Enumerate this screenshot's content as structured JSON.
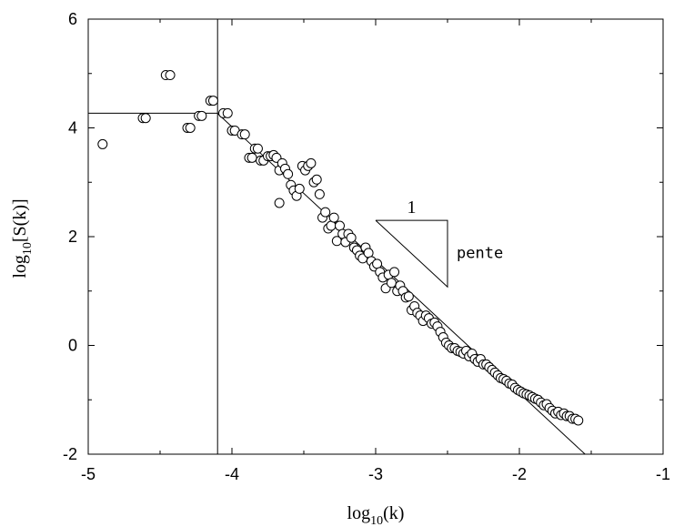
{
  "chart_data": {
    "type": "scatter",
    "xlabel": {
      "base": "log",
      "sub": "10",
      "arg": "(k)"
    },
    "ylabel": {
      "base": "log",
      "sub": "10",
      "arg": "[S(k)]"
    },
    "xlim": [
      -5,
      -1
    ],
    "ylim": [
      -2,
      6
    ],
    "x_ticks": [
      -5,
      -4,
      -3,
      -2,
      -1
    ],
    "y_ticks": [
      -2,
      0,
      2,
      4,
      6
    ],
    "x_tick_labels": [
      "-5",
      "-4",
      "-3",
      "-2",
      "-1"
    ],
    "y_tick_labels": [
      "-2",
      "0",
      "2",
      "4",
      "6"
    ],
    "grid": false,
    "plateau_level": 4.27,
    "cutoff_x": -4.1,
    "fit_line": {
      "slope": -2.45,
      "intercept": -5.78
    },
    "slope_triangle": {
      "x_start": -3.0,
      "x_end": -2.5,
      "y_top": 2.3,
      "run_label": "1",
      "rise_label": "pente"
    },
    "points": [
      [
        -4.9,
        3.7
      ],
      [
        -4.62,
        4.18
      ],
      [
        -4.6,
        4.18
      ],
      [
        -4.46,
        4.97
      ],
      [
        -4.43,
        4.97
      ],
      [
        -4.31,
        4.0
      ],
      [
        -4.29,
        4.0
      ],
      [
        -4.23,
        4.22
      ],
      [
        -4.21,
        4.22
      ],
      [
        -4.15,
        4.5
      ],
      [
        -4.13,
        4.5
      ],
      [
        -4.06,
        4.27
      ],
      [
        -4.03,
        4.27
      ],
      [
        -4.0,
        3.95
      ],
      [
        -3.98,
        3.95
      ],
      [
        -3.93,
        3.88
      ],
      [
        -3.91,
        3.88
      ],
      [
        -3.88,
        3.45
      ],
      [
        -3.86,
        3.45
      ],
      [
        -3.84,
        3.62
      ],
      [
        -3.82,
        3.62
      ],
      [
        -3.8,
        3.4
      ],
      [
        -3.78,
        3.4
      ],
      [
        -3.75,
        3.48
      ],
      [
        -3.73,
        3.48
      ],
      [
        -3.71,
        3.5
      ],
      [
        -3.69,
        3.45
      ],
      [
        -3.67,
        3.22
      ],
      [
        -3.65,
        3.35
      ],
      [
        -3.63,
        3.25
      ],
      [
        -3.61,
        3.15
      ],
      [
        -3.59,
        2.95
      ],
      [
        -3.67,
        2.62
      ],
      [
        -3.57,
        2.85
      ],
      [
        -3.55,
        2.75
      ],
      [
        -3.53,
        2.88
      ],
      [
        -3.51,
        3.3
      ],
      [
        -3.49,
        3.22
      ],
      [
        -3.47,
        3.3
      ],
      [
        -3.45,
        3.35
      ],
      [
        -3.43,
        3.0
      ],
      [
        -3.41,
        3.05
      ],
      [
        -3.39,
        2.78
      ],
      [
        -3.37,
        2.35
      ],
      [
        -3.35,
        2.45
      ],
      [
        -3.33,
        2.15
      ],
      [
        -3.31,
        2.2
      ],
      [
        -3.29,
        2.35
      ],
      [
        -3.27,
        1.92
      ],
      [
        -3.25,
        2.2
      ],
      [
        -3.23,
        2.05
      ],
      [
        -3.21,
        1.9
      ],
      [
        -3.19,
        2.05
      ],
      [
        -3.17,
        1.98
      ],
      [
        -3.15,
        1.8
      ],
      [
        -3.13,
        1.75
      ],
      [
        -3.11,
        1.65
      ],
      [
        -3.09,
        1.6
      ],
      [
        -3.07,
        1.8
      ],
      [
        -3.05,
        1.7
      ],
      [
        -3.03,
        1.55
      ],
      [
        -3.01,
        1.45
      ],
      [
        -2.99,
        1.5
      ],
      [
        -2.97,
        1.35
      ],
      [
        -2.95,
        1.25
      ],
      [
        -2.93,
        1.05
      ],
      [
        -2.91,
        1.3
      ],
      [
        -2.89,
        1.15
      ],
      [
        -2.87,
        1.35
      ],
      [
        -2.85,
        1.0
      ],
      [
        -2.83,
        1.1
      ],
      [
        -2.81,
        1.0
      ],
      [
        -2.79,
        0.88
      ],
      [
        -2.77,
        0.9
      ],
      [
        -2.75,
        0.65
      ],
      [
        -2.73,
        0.72
      ],
      [
        -2.71,
        0.6
      ],
      [
        -2.69,
        0.55
      ],
      [
        -2.67,
        0.45
      ],
      [
        -2.65,
        0.55
      ],
      [
        -2.63,
        0.5
      ],
      [
        -2.61,
        0.4
      ],
      [
        -2.59,
        0.42
      ],
      [
        -2.57,
        0.35
      ],
      [
        -2.55,
        0.25
      ],
      [
        -2.53,
        0.15
      ],
      [
        -2.51,
        0.05
      ],
      [
        -2.49,
        0.0
      ],
      [
        -2.47,
        -0.05
      ],
      [
        -2.45,
        -0.05
      ],
      [
        -2.43,
        -0.1
      ],
      [
        -2.41,
        -0.12
      ],
      [
        -2.39,
        -0.15
      ],
      [
        -2.37,
        -0.1
      ],
      [
        -2.35,
        -0.2
      ],
      [
        -2.33,
        -0.15
      ],
      [
        -2.31,
        -0.25
      ],
      [
        -2.29,
        -0.3
      ],
      [
        -2.27,
        -0.25
      ],
      [
        -2.25,
        -0.35
      ],
      [
        -2.23,
        -0.35
      ],
      [
        -2.21,
        -0.4
      ],
      [
        -2.19,
        -0.45
      ],
      [
        -2.17,
        -0.5
      ],
      [
        -2.15,
        -0.55
      ],
      [
        -2.13,
        -0.6
      ],
      [
        -2.11,
        -0.62
      ],
      [
        -2.09,
        -0.65
      ],
      [
        -2.07,
        -0.7
      ],
      [
        -2.05,
        -0.72
      ],
      [
        -2.03,
        -0.78
      ],
      [
        -2.01,
        -0.82
      ],
      [
        -1.99,
        -0.85
      ],
      [
        -1.97,
        -0.88
      ],
      [
        -1.95,
        -0.9
      ],
      [
        -1.93,
        -0.92
      ],
      [
        -1.91,
        -0.95
      ],
      [
        -1.89,
        -0.98
      ],
      [
        -1.87,
        -1.0
      ],
      [
        -1.85,
        -1.05
      ],
      [
        -1.83,
        -1.1
      ],
      [
        -1.81,
        -1.08
      ],
      [
        -1.79,
        -1.15
      ],
      [
        -1.77,
        -1.2
      ],
      [
        -1.75,
        -1.25
      ],
      [
        -1.73,
        -1.22
      ],
      [
        -1.71,
        -1.28
      ],
      [
        -1.69,
        -1.25
      ],
      [
        -1.67,
        -1.3
      ],
      [
        -1.65,
        -1.3
      ],
      [
        -1.63,
        -1.35
      ],
      [
        -1.61,
        -1.35
      ],
      [
        -1.59,
        -1.38
      ]
    ]
  }
}
